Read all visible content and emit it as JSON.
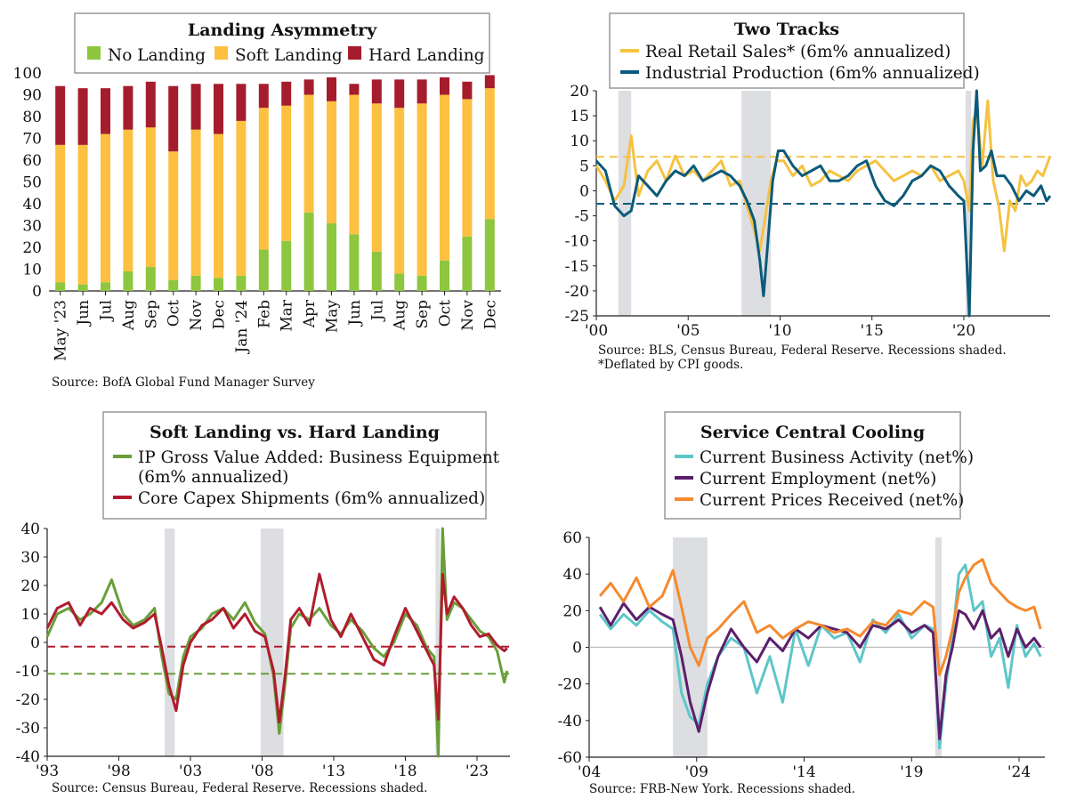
{
  "colors": {
    "green": "#8dc63f",
    "yellow": "#fdc040",
    "red": "#a51d2d",
    "teal": "#0c5a7a",
    "retail": "#f5c242",
    "ipgreen": "#6a9e3a",
    "capex": "#b01c2e",
    "cyan": "#5ec6c9",
    "purple": "#5b1f6b",
    "orange": "#f58a2e",
    "recession": "#dcdee2",
    "axis": "#222222"
  },
  "chart_data": [
    {
      "id": "landing",
      "type": "bar",
      "title": "Landing Asymmetry",
      "legend": [
        "No Landing",
        "Soft Landing",
        "Hard Landing"
      ],
      "categories": [
        "May '23",
        "Jun",
        "Jul",
        "Aug",
        "Sep",
        "Oct",
        "Nov",
        "Dec",
        "Jan '24",
        "Feb",
        "Mar",
        "Apr",
        "May",
        "Jun",
        "Jul",
        "Aug",
        "Sep",
        "Oct",
        "Nov",
        "Dec"
      ],
      "series": [
        {
          "name": "No Landing",
          "values": [
            4,
            3,
            4,
            9,
            11,
            5,
            7,
            6,
            7,
            19,
            23,
            36,
            31,
            26,
            18,
            8,
            7,
            14,
            25,
            33
          ]
        },
        {
          "name": "Soft Landing",
          "values": [
            63,
            64,
            68,
            65,
            64,
            59,
            67,
            66,
            71,
            65,
            62,
            54,
            56,
            64,
            68,
            76,
            79,
            76,
            63,
            60
          ]
        },
        {
          "name": "Hard Landing",
          "values": [
            27,
            26,
            21,
            20,
            21,
            30,
            21,
            23,
            17,
            11,
            11,
            7,
            11,
            5,
            11,
            13,
            11,
            8,
            8,
            6
          ]
        }
      ],
      "yticks": [
        0,
        10,
        20,
        30,
        40,
        50,
        60,
        70,
        80,
        90,
        100
      ],
      "ylim": [
        0,
        100
      ],
      "source": "Source: BofA Global Fund Manager Survey"
    },
    {
      "id": "tracks",
      "type": "line",
      "title": "Two Tracks",
      "legend": [
        "Real Retail Sales* (6m% annualized)",
        "Industrial Production (6m% annualized)"
      ],
      "xlim": [
        2000,
        2024.7
      ],
      "ylim": [
        -25,
        20
      ],
      "yticks": [
        20,
        15,
        10,
        5,
        0,
        -5,
        -10,
        -15,
        -20,
        -25
      ],
      "xticks": [
        {
          "x": 2000,
          "label": "'00"
        },
        {
          "x": 2005,
          "label": "'05"
        },
        {
          "x": 2010,
          "label": "'10"
        },
        {
          "x": 2015,
          "label": "'15"
        },
        {
          "x": 2020,
          "label": "'20"
        }
      ],
      "recessions": [
        [
          2001.2,
          2001.9
        ],
        [
          2007.9,
          2009.5
        ],
        [
          2020.1,
          2020.4
        ]
      ],
      "hlines": [
        {
          "y": 6.8,
          "series": "retail"
        },
        {
          "y": -2.6,
          "series": "ip"
        }
      ],
      "series": [
        {
          "name": "Real Retail Sales* (6m% annualized)",
          "x": [
            2000,
            2000.5,
            2001,
            2001.5,
            2001.9,
            2002.3,
            2002.8,
            2003.3,
            2003.8,
            2004.3,
            2004.8,
            2005.3,
            2005.8,
            2006.3,
            2006.8,
            2007.3,
            2007.8,
            2008.2,
            2008.6,
            2008.9,
            2009.2,
            2009.5,
            2009.8,
            2010.2,
            2010.7,
            2011.2,
            2011.7,
            2012.2,
            2012.7,
            2013.2,
            2013.7,
            2014.2,
            2014.7,
            2015.2,
            2015.7,
            2016.2,
            2016.7,
            2017.2,
            2017.7,
            2018.2,
            2018.7,
            2019.2,
            2019.7,
            2020.0,
            2020.3,
            2020.5,
            2020.7,
            2021.0,
            2021.3,
            2021.6,
            2021.9,
            2022.2,
            2022.5,
            2022.8,
            2023.1,
            2023.4,
            2023.7,
            2024.0,
            2024.3,
            2024.7
          ],
          "y": [
            5,
            2,
            -2,
            1,
            11,
            -1,
            4,
            6,
            2,
            7,
            3,
            4,
            2,
            4,
            6,
            1,
            2,
            -3,
            -8,
            -12,
            -5,
            2,
            6,
            6,
            3,
            5,
            1,
            2,
            4,
            3,
            2,
            4,
            5,
            6,
            4,
            2,
            3,
            4,
            3,
            5,
            2,
            3,
            4,
            2,
            -4,
            14,
            16,
            5,
            18,
            2,
            -3,
            -12,
            -2,
            -4,
            3,
            1,
            2,
            4,
            3,
            7
          ]
        },
        {
          "name": "Industrial Production (6m% annualized)",
          "x": [
            2000,
            2000.5,
            2001,
            2001.5,
            2001.9,
            2002.3,
            2002.8,
            2003.3,
            2003.8,
            2004.3,
            2004.8,
            2005.3,
            2005.8,
            2006.3,
            2006.8,
            2007.3,
            2007.8,
            2008.2,
            2008.6,
            2008.9,
            2009.1,
            2009.3,
            2009.6,
            2009.9,
            2010.2,
            2010.7,
            2011.2,
            2011.7,
            2012.2,
            2012.7,
            2013.2,
            2013.7,
            2014.2,
            2014.7,
            2015.2,
            2015.7,
            2016.2,
            2016.7,
            2017.2,
            2017.7,
            2018.2,
            2018.7,
            2019.2,
            2019.7,
            2020.0,
            2020.3,
            2020.5,
            2020.7,
            2020.9,
            2021.2,
            2021.5,
            2021.8,
            2022.2,
            2022.6,
            2023.0,
            2023.4,
            2023.8,
            2024.2,
            2024.5,
            2024.7
          ],
          "y": [
            6,
            4,
            -3,
            -5,
            -4,
            3,
            1,
            -1,
            2,
            4,
            3,
            5,
            2,
            3,
            4,
            3,
            1,
            -2,
            -6,
            -14,
            -21,
            -12,
            2,
            8,
            8,
            5,
            3,
            4,
            5,
            2,
            2,
            3,
            5,
            6,
            1,
            -2,
            -3,
            -1,
            2,
            3,
            5,
            4,
            1,
            -1,
            -2,
            -25,
            8,
            20,
            4,
            5,
            8,
            3,
            3,
            1,
            -2,
            0,
            -1,
            1,
            -2,
            -1
          ]
        }
      ],
      "source": "Source: BLS, Census Bureau, Federal Reserve. Recessions shaded.",
      "footnote": "*Deflated by CPI goods."
    },
    {
      "id": "capex",
      "type": "line",
      "title": "Soft Landing vs. Hard Landing",
      "legend": [
        "IP Gross Value Added: Business Equipment",
        "(6m% annualized)",
        "Core Capex Shipments (6m% annualized)"
      ],
      "xlim": [
        1993,
        2025.3
      ],
      "ylim": [
        -40,
        40
      ],
      "yticks": [
        40,
        30,
        20,
        10,
        0,
        -10,
        -20,
        -30,
        -40
      ],
      "xticks": [
        {
          "x": 1993,
          "label": "'93"
        },
        {
          "x": 1998,
          "label": "'98"
        },
        {
          "x": 2003,
          "label": "'03"
        },
        {
          "x": 2008,
          "label": "'08"
        },
        {
          "x": 2013,
          "label": "'13"
        },
        {
          "x": 2018,
          "label": "'18"
        },
        {
          "x": 2023,
          "label": "'23"
        }
      ],
      "recessions": [
        [
          2001.2,
          2001.9
        ],
        [
          2007.9,
          2009.5
        ],
        [
          2020.1,
          2020.4
        ]
      ],
      "hlines": [
        {
          "y": -1.5,
          "series": "capex"
        },
        {
          "y": -11,
          "series": "ip"
        }
      ],
      "series": [
        {
          "name": "IP Gross Value Added: Business Equipment",
          "x": [
            1993,
            1993.7,
            1994.5,
            1995.3,
            1996,
            1996.8,
            1997.5,
            1998.3,
            1999,
            1999.8,
            2000.5,
            2001,
            2001.5,
            2002,
            2002.5,
            2003,
            2003.8,
            2004.5,
            2005.3,
            2006,
            2006.8,
            2007.5,
            2008.2,
            2008.8,
            2009.2,
            2009.6,
            2010,
            2010.6,
            2011.3,
            2012,
            2012.8,
            2013.5,
            2014.2,
            2015,
            2015.8,
            2016.5,
            2017.2,
            2018,
            2018.8,
            2019.5,
            2020,
            2020.3,
            2020.6,
            2020.9,
            2021.4,
            2022,
            2022.6,
            2023.2,
            2023.8,
            2024.4,
            2024.9,
            2025.1
          ],
          "y": [
            2,
            10,
            12,
            8,
            10,
            14,
            22,
            10,
            6,
            8,
            12,
            -5,
            -18,
            -20,
            -5,
            2,
            5,
            10,
            12,
            8,
            14,
            7,
            3,
            -12,
            -32,
            -15,
            5,
            10,
            8,
            12,
            6,
            3,
            8,
            4,
            -2,
            -5,
            0,
            10,
            6,
            -2,
            -5,
            -40,
            40,
            8,
            14,
            12,
            8,
            4,
            2,
            -3,
            -14,
            -10
          ]
        },
        {
          "name": "Core Capex Shipments (6m% annualized)",
          "x": [
            1993,
            1993.7,
            1994.5,
            1995.3,
            1996,
            1996.8,
            1997.5,
            1998.3,
            1999,
            1999.8,
            2000.5,
            2001,
            2001.5,
            2002,
            2002.5,
            2003,
            2003.8,
            2004.5,
            2005.3,
            2006,
            2006.8,
            2007.5,
            2008.2,
            2008.8,
            2009.2,
            2009.6,
            2010,
            2010.6,
            2011.3,
            2012,
            2012.8,
            2013.5,
            2014.2,
            2015,
            2015.8,
            2016.5,
            2017.2,
            2018,
            2018.8,
            2019.5,
            2020,
            2020.3,
            2020.6,
            2020.9,
            2021.4,
            2022,
            2022.6,
            2023.2,
            2023.8,
            2024.4,
            2024.9,
            2025.1
          ],
          "y": [
            5,
            12,
            14,
            6,
            12,
            10,
            14,
            8,
            5,
            7,
            10,
            -2,
            -15,
            -24,
            -8,
            0,
            6,
            8,
            12,
            5,
            10,
            4,
            2,
            -10,
            -28,
            -12,
            8,
            12,
            6,
            24,
            8,
            2,
            10,
            2,
            -6,
            -8,
            2,
            12,
            4,
            -3,
            -8,
            -27,
            24,
            10,
            16,
            12,
            6,
            2,
            3,
            -1,
            -3,
            -2
          ]
        }
      ],
      "source": "Source: Census Bureau, Federal Reserve. Recessions shaded."
    },
    {
      "id": "services",
      "type": "line",
      "title": "Service Central Cooling",
      "legend": [
        "Current Business Activity (net%)",
        "Current Employment (net%)",
        "Current Prices Received (net%)"
      ],
      "xlim": [
        2004,
        2025.2
      ],
      "ylim": [
        -60,
        60
      ],
      "yticks": [
        60,
        40,
        20,
        0,
        -20,
        -40,
        -60
      ],
      "xticks": [
        {
          "x": 2004,
          "label": "'04"
        },
        {
          "x": 2009,
          "label": "'09"
        },
        {
          "x": 2014,
          "label": "'14"
        },
        {
          "x": 2019,
          "label": "'19"
        },
        {
          "x": 2024,
          "label": "'24"
        }
      ],
      "recessions": [
        [
          2007.9,
          2009.5
        ],
        [
          2020.1,
          2020.4
        ]
      ],
      "series": [
        {
          "name": "Current Business Activity (net%)",
          "x": [
            2004.5,
            2005,
            2005.6,
            2006.2,
            2006.8,
            2007.4,
            2007.9,
            2008.3,
            2008.7,
            2009.1,
            2009.5,
            2010,
            2010.6,
            2011.2,
            2011.8,
            2012.4,
            2013,
            2013.6,
            2014.2,
            2014.8,
            2015.4,
            2016,
            2016.6,
            2017.2,
            2017.8,
            2018.4,
            2019,
            2019.6,
            2020.0,
            2020.3,
            2020.6,
            2020.9,
            2021.2,
            2021.5,
            2021.9,
            2022.3,
            2022.7,
            2023.1,
            2023.5,
            2023.9,
            2024.3,
            2024.7,
            2025.0
          ],
          "y": [
            18,
            10,
            18,
            12,
            20,
            14,
            10,
            -25,
            -38,
            -42,
            -20,
            -5,
            5,
            0,
            -25,
            -5,
            -30,
            10,
            -10,
            12,
            5,
            8,
            -8,
            15,
            8,
            18,
            5,
            12,
            10,
            -55,
            -20,
            5,
            40,
            45,
            20,
            25,
            -5,
            5,
            -22,
            12,
            -5,
            2,
            -5
          ]
        },
        {
          "name": "Current Employment (net%)",
          "x": [
            2004.5,
            2005,
            2005.6,
            2006.2,
            2006.8,
            2007.4,
            2007.9,
            2008.3,
            2008.7,
            2009.1,
            2009.5,
            2010,
            2010.6,
            2011.2,
            2011.8,
            2012.4,
            2013,
            2013.6,
            2014.2,
            2014.8,
            2015.4,
            2016,
            2016.6,
            2017.2,
            2017.8,
            2018.4,
            2019,
            2019.6,
            2020.0,
            2020.3,
            2020.6,
            2020.9,
            2021.2,
            2021.5,
            2021.9,
            2022.3,
            2022.7,
            2023.1,
            2023.5,
            2023.9,
            2024.3,
            2024.7,
            2025.0
          ],
          "y": [
            22,
            12,
            24,
            15,
            22,
            18,
            15,
            -5,
            -30,
            -46,
            -25,
            -5,
            10,
            0,
            -8,
            5,
            -2,
            10,
            5,
            12,
            10,
            8,
            0,
            12,
            10,
            15,
            8,
            12,
            8,
            -50,
            -15,
            0,
            20,
            18,
            10,
            20,
            5,
            10,
            -5,
            10,
            0,
            5,
            0
          ]
        },
        {
          "name": "Current Prices Received (net%)",
          "x": [
            2004.5,
            2005,
            2005.6,
            2006.2,
            2006.8,
            2007.4,
            2007.9,
            2008.3,
            2008.7,
            2009.1,
            2009.5,
            2010,
            2010.6,
            2011.2,
            2011.8,
            2012.4,
            2013,
            2013.6,
            2014.2,
            2014.8,
            2015.4,
            2016,
            2016.6,
            2017.2,
            2017.8,
            2018.4,
            2019,
            2019.6,
            2020.0,
            2020.3,
            2020.6,
            2020.9,
            2021.2,
            2021.5,
            2021.9,
            2022.3,
            2022.7,
            2023.1,
            2023.5,
            2023.9,
            2024.3,
            2024.7,
            2025.0
          ],
          "y": [
            28,
            35,
            25,
            38,
            22,
            28,
            42,
            22,
            0,
            -10,
            5,
            10,
            18,
            25,
            8,
            12,
            5,
            10,
            14,
            12,
            8,
            10,
            6,
            14,
            12,
            20,
            18,
            25,
            22,
            -15,
            -5,
            10,
            30,
            38,
            45,
            48,
            35,
            30,
            25,
            22,
            20,
            22,
            10
          ]
        }
      ],
      "source": "Source: FRB-New York. Recessions shaded."
    }
  ]
}
